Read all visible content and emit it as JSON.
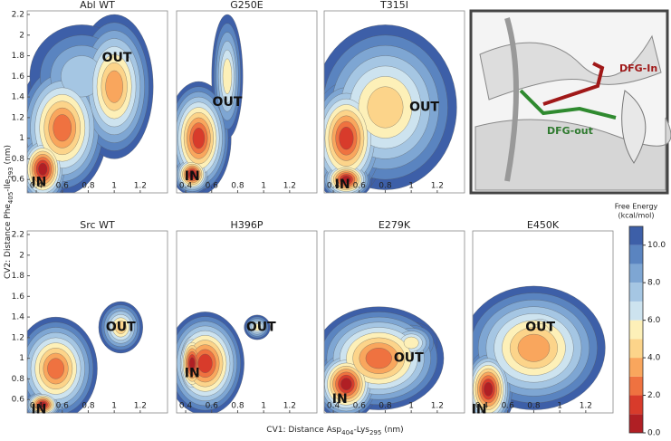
{
  "figure": {
    "panels": [
      {
        "title": "Abl WT",
        "regions": [
          "IN",
          "OUT"
        ]
      },
      {
        "title": "G250E",
        "regions": [
          "IN",
          "OUT"
        ]
      },
      {
        "title": "T315I",
        "regions": [
          "IN",
          "OUT"
        ]
      },
      {
        "title": "Src WT",
        "regions": [
          "IN",
          "OUT"
        ]
      },
      {
        "title": "H396P",
        "regions": [
          "IN",
          "OUT"
        ]
      },
      {
        "title": "E279K",
        "regions": [
          "IN",
          "OUT"
        ]
      },
      {
        "title": "E450K",
        "regions": [
          "IN",
          "OUT"
        ]
      }
    ],
    "structure_labels": [
      "DFG-In",
      "DFG-out"
    ],
    "xlim": [
      0.33,
      1.41
    ],
    "xticks": [
      0.4,
      0.6,
      0.8,
      1.0,
      1.2
    ],
    "ylim": [
      0.47,
      2.235
    ],
    "yticks": [
      0.6,
      0.8,
      1.0,
      1.2,
      1.4,
      1.6,
      1.8,
      2.0,
      2.2
    ],
    "xlabel": {
      "parts": [
        "CV1: Distance Asp",
        "404",
        "-Lys",
        "295",
        " (nm)"
      ]
    },
    "ylabel": {
      "parts": [
        "CV2: Distance Phe",
        "405",
        "-Ile",
        "293",
        " (nm)"
      ]
    },
    "colorbar": {
      "title": [
        "Free Energy",
        "(kcal/mol)"
      ],
      "lim": [
        0,
        11
      ],
      "ticks": [
        {
          "value": 0,
          "label": "0.0"
        },
        {
          "value": 2,
          "label": "2.0"
        },
        {
          "value": 4,
          "label": "4.0"
        },
        {
          "value": 6,
          "label": "6.0"
        },
        {
          "value": 8,
          "label": "8.0"
        },
        {
          "value": 10,
          "label": "10.0"
        }
      ],
      "colors": [
        "#b01f24",
        "#d83b2b",
        "#ef7240",
        "#f9a65d",
        "#fcd48a",
        "#fdf0b8",
        "#cde3ef",
        "#a5c6e3",
        "#7ea6d3",
        "#5a84c0",
        "#3d5fa8"
      ]
    }
  }
}
